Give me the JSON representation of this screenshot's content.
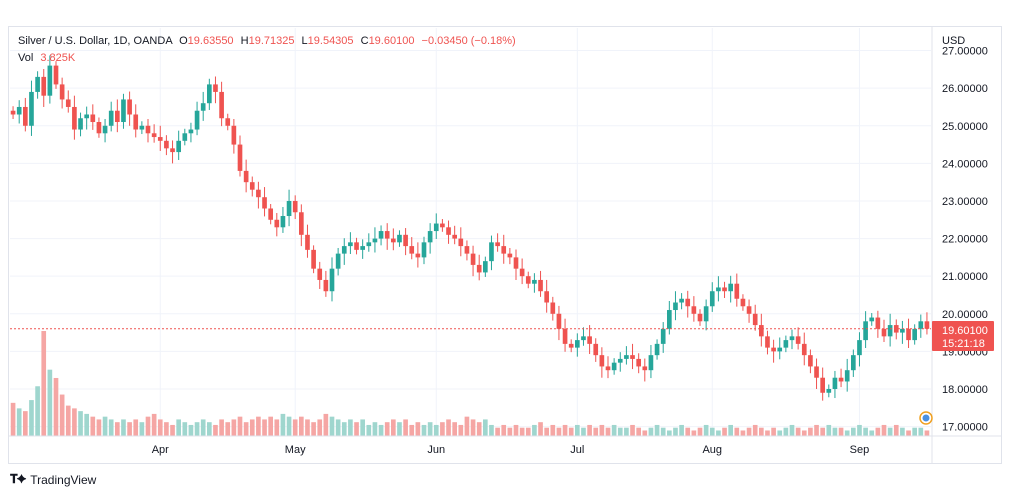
{
  "legend": {
    "symbol": "Silver / U.S. Dollar, 1D, OANDA",
    "o_label": "O",
    "o": "19.63550",
    "h_label": "H",
    "h": "19.71325",
    "l_label": "L",
    "l": "19.54305",
    "c_label": "C",
    "c": "19.60100",
    "change": "−0.03450 (−0.18%)",
    "vol_label": "Vol",
    "vol": "3.825K"
  },
  "price_axis": {
    "currency": "USD",
    "last_price": "19.60100",
    "countdown": "15:21:18"
  },
  "branding": {
    "name": "TradingView"
  },
  "colors": {
    "up": "#26a69a",
    "down": "#ef5350",
    "vol_up": "#9fd6ce",
    "vol_down": "#f5a6a4",
    "grid": "#f0f3fa"
  },
  "chart_data": {
    "type": "candlestick",
    "ylim": [
      16.75,
      27.6
    ],
    "y_ticks": [
      "17.00000",
      "18.00000",
      "19.00000",
      "20.00000",
      "21.00000",
      "22.00000",
      "23.00000",
      "24.00000",
      "25.00000",
      "26.00000",
      "27.00000"
    ],
    "x_ticks": [
      {
        "label": "Apr",
        "index": 24
      },
      {
        "label": "May",
        "index": 46
      },
      {
        "label": "Jun",
        "index": 69
      },
      {
        "label": "Jul",
        "index": 92
      },
      {
        "label": "Aug",
        "index": 114
      },
      {
        "label": "Sep",
        "index": 138
      }
    ],
    "grid": true,
    "closes": [
      25.3,
      25.5,
      25.0,
      25.9,
      26.3,
      25.8,
      26.6,
      26.1,
      25.7,
      25.5,
      24.9,
      25.2,
      25.3,
      25.1,
      24.8,
      25.0,
      25.4,
      25.1,
      25.7,
      25.3,
      24.9,
      25.0,
      24.8,
      24.7,
      24.6,
      24.4,
      24.3,
      24.6,
      24.8,
      24.9,
      25.4,
      25.6,
      26.1,
      25.9,
      25.2,
      25.0,
      24.5,
      23.8,
      23.5,
      23.3,
      23.1,
      22.8,
      22.5,
      22.3,
      22.6,
      23.0,
      22.7,
      22.1,
      21.7,
      21.2,
      20.9,
      20.6,
      21.2,
      21.6,
      21.8,
      21.9,
      21.7,
      21.8,
      21.9,
      22.0,
      22.2,
      22.0,
      21.9,
      22.1,
      21.8,
      21.6,
      21.5,
      21.9,
      22.2,
      22.4,
      22.3,
      22.1,
      22.0,
      21.8,
      21.6,
      21.3,
      21.1,
      21.4,
      21.9,
      21.8,
      21.6,
      21.5,
      21.2,
      21.0,
      20.8,
      20.9,
      20.6,
      20.3,
      20.0,
      19.6,
      19.2,
      19.1,
      19.3,
      19.4,
      19.2,
      18.9,
      18.6,
      18.5,
      18.7,
      18.8,
      18.9,
      18.8,
      18.6,
      18.5,
      18.9,
      19.2,
      19.6,
      20.1,
      20.3,
      20.4,
      20.2,
      20.0,
      19.8,
      20.2,
      20.6,
      20.7,
      20.6,
      20.8,
      20.4,
      20.2,
      20.0,
      19.7,
      19.4,
      19.1,
      19.0,
      19.1,
      19.3,
      19.4,
      19.2,
      18.9,
      18.6,
      18.3,
      17.9,
      18.0,
      18.3,
      18.2,
      18.5,
      18.9,
      19.3,
      19.8,
      19.9,
      19.6,
      19.4,
      19.7,
      19.5,
      19.6,
      19.3,
      19.6,
      19.8,
      19.6
    ],
    "volume": [
      1.2,
      1.0,
      0.9,
      1.3,
      1.8,
      3.8,
      2.4,
      2.1,
      1.5,
      1.1,
      1.0,
      0.9,
      0.8,
      0.7,
      0.6,
      0.7,
      0.6,
      0.5,
      0.6,
      0.5,
      0.6,
      0.5,
      0.7,
      0.8,
      0.6,
      0.5,
      0.4,
      0.6,
      0.5,
      0.4,
      0.5,
      0.6,
      0.5,
      0.4,
      0.6,
      0.5,
      0.6,
      0.7,
      0.5,
      0.6,
      0.7,
      0.6,
      0.7,
      0.6,
      0.8,
      0.7,
      0.6,
      0.7,
      0.6,
      0.5,
      0.6,
      0.8,
      0.7,
      0.6,
      0.5,
      0.6,
      0.5,
      0.6,
      0.4,
      0.5,
      0.4,
      0.5,
      0.6,
      0.5,
      0.6,
      0.4,
      0.5,
      0.4,
      0.5,
      0.4,
      0.5,
      0.6,
      0.5,
      0.4,
      0.7,
      0.6,
      0.5,
      0.6,
      0.4,
      0.3,
      0.4,
      0.3,
      0.4,
      0.3,
      0.3,
      0.4,
      0.5,
      0.3,
      0.4,
      0.3,
      0.4,
      0.3,
      0.4,
      0.3,
      0.4,
      0.3,
      0.4,
      0.3,
      0.4,
      0.3,
      0.3,
      0.4,
      0.3,
      0.2,
      0.3,
      0.4,
      0.3,
      0.2,
      0.3,
      0.4,
      0.3,
      0.2,
      0.3,
      0.4,
      0.3,
      0.2,
      0.3,
      0.4,
      0.3,
      0.2,
      0.3,
      0.4,
      0.3,
      0.2,
      0.3,
      0.2,
      0.3,
      0.4,
      0.3,
      0.2,
      0.3,
      0.4,
      0.3,
      0.4,
      0.3,
      0.3,
      0.2,
      0.3,
      0.4,
      0.3,
      0.2,
      0.3,
      0.4,
      0.3,
      0.4,
      0.3,
      0.2,
      0.3,
      0.3,
      0.2,
      0.3,
      0.3
    ]
  }
}
